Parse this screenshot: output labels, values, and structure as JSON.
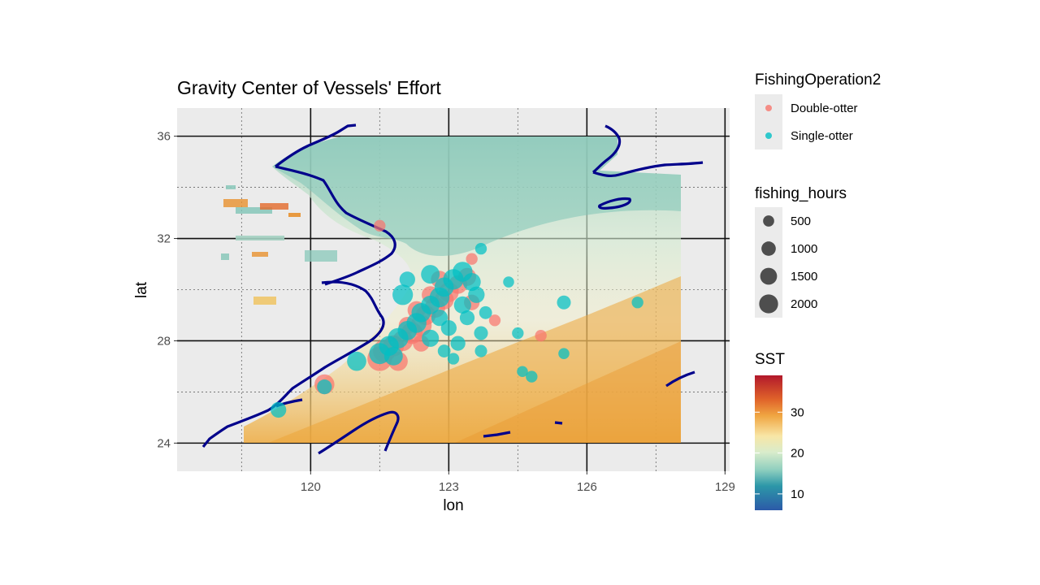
{
  "chart_data": {
    "type": "scatter",
    "title": "Gravity Center of Vessels' Effort",
    "xlabel": "lon",
    "ylabel": "lat",
    "xlim": [
      117.1,
      129.1
    ],
    "ylim": [
      22.9,
      37.1
    ],
    "x_ticks": [
      120,
      123,
      126,
      129
    ],
    "y_ticks": [
      24,
      28,
      32,
      36
    ],
    "x_minor_ticks": [
      118.5,
      121.5,
      124.5,
      127.5
    ],
    "y_minor_ticks": [
      26,
      30,
      34
    ],
    "grid": true,
    "legend_position": "right",
    "colors": {
      "panel": "#ebebeb",
      "coastline": "#00008b",
      "double_otter": "#f8766d",
      "single_otter": "#00bfc4"
    },
    "color_legend": {
      "title": "FishingOperation2",
      "entries": [
        "Double-otter",
        "Single-otter"
      ]
    },
    "size_legend": {
      "title": "fishing_hours",
      "values": [
        500,
        1000,
        1500,
        2000
      ]
    },
    "fill_legend": {
      "title": "SST",
      "ticks": [
        10,
        20,
        30
      ],
      "range": [
        6,
        39
      ],
      "palette": [
        "#b2182b",
        "#d6604d",
        "#f4a582",
        "#fddbc7",
        "#f7f7c9",
        "#c7e9c0",
        "#4fb3a0",
        "#2166ac",
        "#253494"
      ]
    },
    "series": [
      {
        "name": "Double-otter",
        "points": [
          {
            "x": 121.5,
            "y": 27.3,
            "h": 2200
          },
          {
            "x": 121.6,
            "y": 27.6,
            "h": 1800
          },
          {
            "x": 121.8,
            "y": 27.8,
            "h": 1500
          },
          {
            "x": 122.0,
            "y": 28.0,
            "h": 1400
          },
          {
            "x": 122.2,
            "y": 28.3,
            "h": 1600
          },
          {
            "x": 122.4,
            "y": 28.6,
            "h": 1500
          },
          {
            "x": 122.5,
            "y": 29.0,
            "h": 1300
          },
          {
            "x": 122.7,
            "y": 29.3,
            "h": 1400
          },
          {
            "x": 122.9,
            "y": 29.6,
            "h": 1200
          },
          {
            "x": 123.0,
            "y": 29.9,
            "h": 1300
          },
          {
            "x": 123.2,
            "y": 30.2,
            "h": 1100
          },
          {
            "x": 123.4,
            "y": 30.5,
            "h": 1000
          },
          {
            "x": 122.6,
            "y": 29.8,
            "h": 900
          },
          {
            "x": 122.3,
            "y": 29.2,
            "h": 1000
          },
          {
            "x": 122.8,
            "y": 30.4,
            "h": 900
          },
          {
            "x": 123.5,
            "y": 29.5,
            "h": 700
          },
          {
            "x": 120.3,
            "y": 26.3,
            "h": 1300
          },
          {
            "x": 121.5,
            "y": 32.5,
            "h": 300
          },
          {
            "x": 123.5,
            "y": 31.2,
            "h": 300
          },
          {
            "x": 124.0,
            "y": 28.8,
            "h": 300
          },
          {
            "x": 125.0,
            "y": 28.2,
            "h": 300
          },
          {
            "x": 122.1,
            "y": 28.6,
            "h": 900
          },
          {
            "x": 121.9,
            "y": 27.2,
            "h": 1200
          },
          {
            "x": 122.4,
            "y": 27.9,
            "h": 800
          }
        ]
      },
      {
        "name": "Single-otter",
        "points": [
          {
            "x": 121.0,
            "y": 27.2,
            "h": 1200
          },
          {
            "x": 121.5,
            "y": 27.5,
            "h": 1500
          },
          {
            "x": 121.7,
            "y": 27.8,
            "h": 1300
          },
          {
            "x": 121.9,
            "y": 28.1,
            "h": 1400
          },
          {
            "x": 122.1,
            "y": 28.4,
            "h": 1200
          },
          {
            "x": 122.3,
            "y": 28.7,
            "h": 1300
          },
          {
            "x": 122.4,
            "y": 29.1,
            "h": 1200
          },
          {
            "x": 122.6,
            "y": 29.4,
            "h": 1100
          },
          {
            "x": 122.8,
            "y": 29.7,
            "h": 1300
          },
          {
            "x": 122.9,
            "y": 30.1,
            "h": 1200
          },
          {
            "x": 123.1,
            "y": 30.4,
            "h": 1400
          },
          {
            "x": 123.3,
            "y": 30.7,
            "h": 1300
          },
          {
            "x": 122.6,
            "y": 30.6,
            "h": 1100
          },
          {
            "x": 123.5,
            "y": 30.3,
            "h": 1000
          },
          {
            "x": 122.0,
            "y": 29.8,
            "h": 1400
          },
          {
            "x": 122.1,
            "y": 30.4,
            "h": 700
          },
          {
            "x": 123.6,
            "y": 29.8,
            "h": 800
          },
          {
            "x": 123.4,
            "y": 28.9,
            "h": 600
          },
          {
            "x": 123.0,
            "y": 28.5,
            "h": 700
          },
          {
            "x": 123.2,
            "y": 27.9,
            "h": 600
          },
          {
            "x": 122.9,
            "y": 27.6,
            "h": 400
          },
          {
            "x": 123.7,
            "y": 28.3,
            "h": 500
          },
          {
            "x": 123.8,
            "y": 29.1,
            "h": 400
          },
          {
            "x": 123.1,
            "y": 27.3,
            "h": 300
          },
          {
            "x": 123.7,
            "y": 27.6,
            "h": 350
          },
          {
            "x": 123.7,
            "y": 31.6,
            "h": 300
          },
          {
            "x": 124.3,
            "y": 30.3,
            "h": 250
          },
          {
            "x": 124.5,
            "y": 28.3,
            "h": 300
          },
          {
            "x": 124.6,
            "y": 26.8,
            "h": 250
          },
          {
            "x": 124.8,
            "y": 26.6,
            "h": 300
          },
          {
            "x": 125.5,
            "y": 27.5,
            "h": 250
          },
          {
            "x": 125.5,
            "y": 29.5,
            "h": 500
          },
          {
            "x": 127.1,
            "y": 29.5,
            "h": 300
          },
          {
            "x": 119.3,
            "y": 25.3,
            "h": 700
          },
          {
            "x": 120.3,
            "y": 26.2,
            "h": 600
          },
          {
            "x": 122.6,
            "y": 28.1,
            "h": 900
          },
          {
            "x": 122.8,
            "y": 28.9,
            "h": 800
          },
          {
            "x": 123.3,
            "y": 29.4,
            "h": 900
          },
          {
            "x": 121.8,
            "y": 27.4,
            "h": 1100
          }
        ]
      }
    ]
  }
}
